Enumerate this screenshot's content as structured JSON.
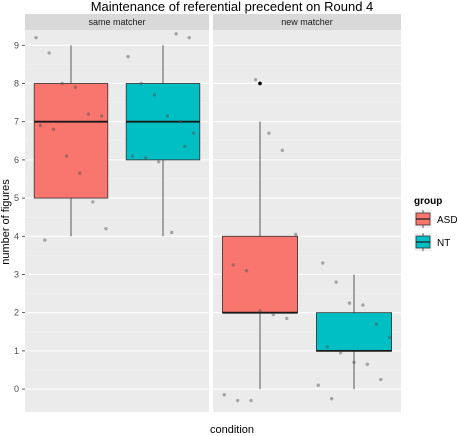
{
  "chart_data": {
    "type": "boxplot",
    "title": "Maintenance of referential precedent on Round 4",
    "xlabel": "condition",
    "ylabel": "number of figures",
    "ylim": [
      -0.6,
      9.4
    ],
    "yticks": [
      0,
      1,
      2,
      3,
      4,
      5,
      6,
      7,
      8,
      9
    ],
    "grid": true,
    "legend": {
      "title": "group",
      "position": "right",
      "entries": [
        {
          "label": "ASD",
          "color": "#F8766D"
        },
        {
          "label": "NT",
          "color": "#00BFC4"
        }
      ]
    },
    "facets": [
      {
        "label": "same matcher",
        "groups": [
          {
            "group": "ASD",
            "min": 4,
            "q1": 5,
            "median": 7,
            "q3": 8,
            "max": 9,
            "outliers": [],
            "points": [
              9.2,
              8.8,
              8.0,
              7.9,
              7.2,
              7.15,
              6.9,
              6.8,
              6.1,
              5.65,
              4.9,
              4.2,
              3.9
            ]
          },
          {
            "group": "NT",
            "min": 4,
            "q1": 6,
            "median": 7,
            "q3": 8,
            "max": 9,
            "outliers": [],
            "points": [
              9.3,
              9.2,
              8.7,
              8.0,
              7.7,
              7.15,
              7.0,
              6.7,
              6.1,
              6.05,
              5.95,
              4.1,
              6.35
            ]
          }
        ]
      },
      {
        "label": "new matcher",
        "groups": [
          {
            "group": "ASD",
            "min": 0,
            "q1": 2,
            "median": 2,
            "q3": 4,
            "max": 7,
            "outliers": [
              8
            ],
            "points": [
              8.1,
              6.7,
              6.25,
              4.05,
              3.25,
              3.1,
              2.05,
              1.95,
              1.85,
              -0.15,
              -0.3,
              -0.3
            ]
          },
          {
            "group": "NT",
            "min": 0,
            "q1": 1,
            "median": 1,
            "q3": 2,
            "max": 3,
            "outliers": [],
            "points": [
              3.3,
              2.8,
              2.25,
              2.2,
              1.7,
              1.35,
              1.1,
              0.95,
              0.7,
              0.65,
              0.25,
              0.1,
              -0.25
            ]
          }
        ]
      }
    ]
  }
}
